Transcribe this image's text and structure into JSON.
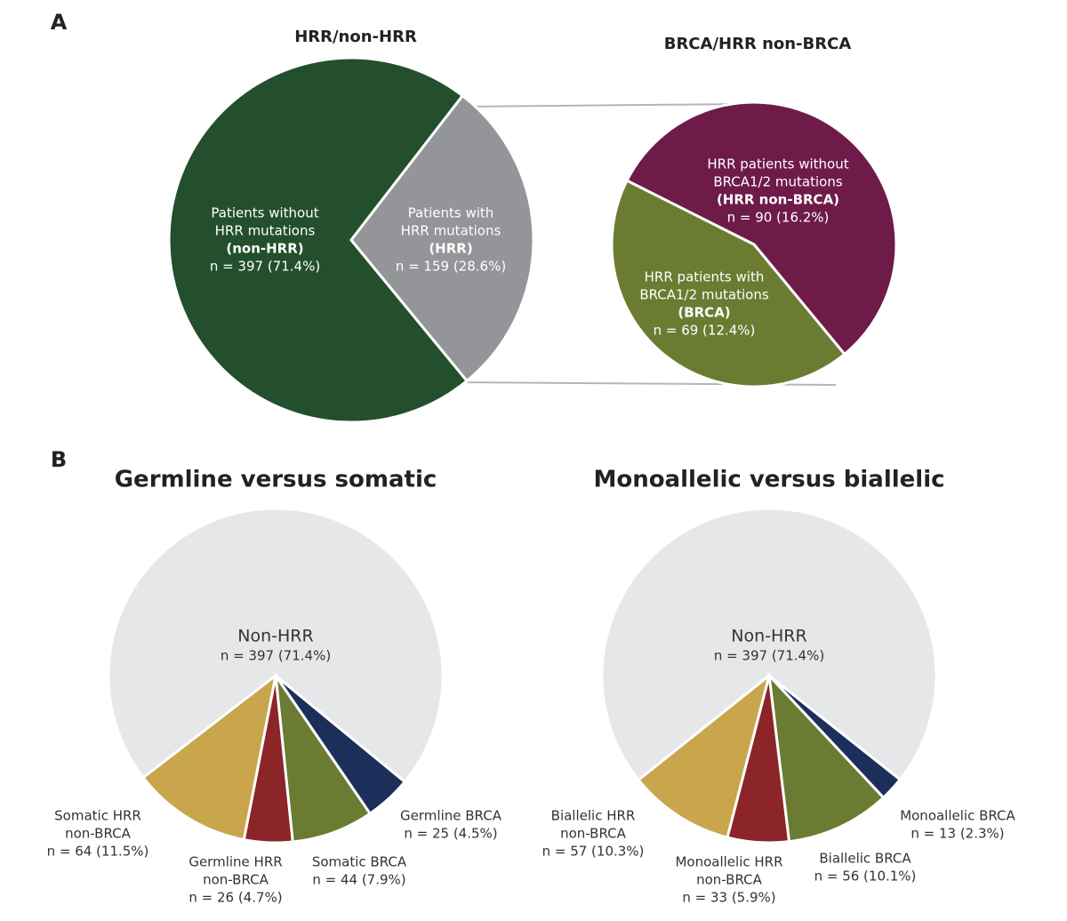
{
  "chart_data": [
    {
      "type": "pie",
      "panel": "A",
      "title": "HRR/non-HRR",
      "categories": [
        [
          "Patients without",
          "HRR mutations",
          "(non-HRR)"
        ],
        [
          "Patients with",
          "HRR mutations",
          "(HRR)"
        ]
      ],
      "values": [
        397,
        159
      ],
      "value_labels": [
        "n = 397 (71.4%)",
        "n = 159 (28.6%)"
      ],
      "colors": [
        "#234f2c",
        "#939598"
      ]
    },
    {
      "type": "pie",
      "title": "BRCA/HRR non-BRCA",
      "categories": [
        [
          "HRR patients without",
          "BRCA1/2 mutations",
          "(HRR non-BRCA)"
        ],
        [
          "HRR patients with",
          "BRCA1/2 mutations",
          "(BRCA)"
        ]
      ],
      "values": [
        90,
        69
      ],
      "value_labels": [
        "n = 90 (16.2%)",
        "n = 69 (12.4%)"
      ],
      "colors": [
        "#6e1b4a",
        "#6b7c32"
      ]
    },
    {
      "type": "pie",
      "panel": "B",
      "title": "Germline versus somatic",
      "categories": [
        [
          "Non-HRR"
        ],
        [
          "Germline BRCA"
        ],
        [
          "Somatic BRCA"
        ],
        [
          "Germline HRR",
          "non-BRCA"
        ],
        [
          "Somatic HRR",
          "non-BRCA"
        ]
      ],
      "values": [
        397,
        25,
        44,
        26,
        64
      ],
      "value_labels": [
        "n = 397 (71.4%)",
        "n = 25 (4.5%)",
        "n = 44 (7.9%)",
        "n = 26 (4.7%)",
        "n = 64 (11.5%)"
      ],
      "colors": [
        "#e6e7e8",
        "#1c2f5a",
        "#6b7c32",
        "#8b2528",
        "#c9a54c"
      ]
    },
    {
      "type": "pie",
      "title": "Monoallelic versus biallelic",
      "categories": [
        [
          "Non-HRR"
        ],
        [
          "Monoallelic BRCA"
        ],
        [
          "Biallelic BRCA"
        ],
        [
          "Monoallelic HRR",
          "non-BRCA"
        ],
        [
          "Biallelic HRR",
          "non-BRCA"
        ]
      ],
      "values": [
        397,
        13,
        56,
        33,
        57
      ],
      "value_labels": [
        "n = 397 (71.4%)",
        "n = 13 (2.3%)",
        "n = 56 (10.1%)",
        "n = 33 (5.9%)",
        "n = 57 (10.3%)"
      ],
      "colors": [
        "#e6e7e8",
        "#1c2f5a",
        "#6b7c32",
        "#8b2528",
        "#c9a54c"
      ]
    }
  ]
}
